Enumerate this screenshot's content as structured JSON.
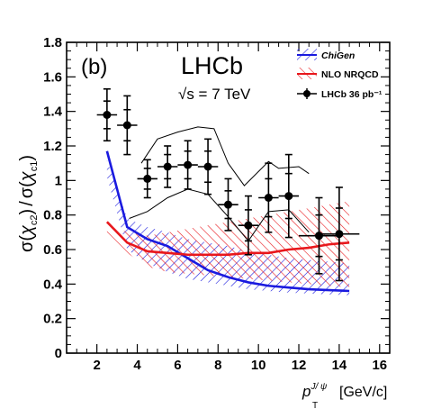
{
  "chart_data": {
    "type": "scatter",
    "panel_label": "(b)",
    "experiment": "LHCb",
    "energy_label": "√s = 7 TeV",
    "ylabel": "σ(χ_c2) / σ(χ_c1)",
    "xlabel": "p_T^{J/ψ} [GeV/c]",
    "xlabel_parts": {
      "p": "p",
      "sup": "J/ ψ",
      "sub": "T",
      "unit": "[GeV/c]"
    },
    "ylabel_parts": {
      "sigma1": "σ(",
      "chi1": "χ",
      "sub1": "c2",
      "close1": ")",
      "slash": "/",
      "sigma2": "σ(",
      "chi2": "χ",
      "sub2": "c1",
      "close2": ")"
    },
    "xlim": [
      0.5,
      16.5
    ],
    "ylim": [
      0,
      1.8
    ],
    "x_ticks": [
      "2",
      "4",
      "6",
      "8",
      "10",
      "12",
      "14",
      "16"
    ],
    "y_ticks": [
      "0",
      "0.2",
      "0.4",
      "0.6",
      "0.8",
      "1",
      "1.2",
      "1.4",
      "1.6",
      "1.8"
    ],
    "legend": [
      {
        "name": "ChiGen",
        "style": "blue-hatch"
      },
      {
        "name": "NLO NRQCD",
        "style": "red-hatch"
      },
      {
        "name": "LHCb 36 pb⁻¹",
        "style": "marker"
      }
    ],
    "series": [
      {
        "name": "LHCb 36 pb⁻¹",
        "points": [
          {
            "x": 2.5,
            "y": 1.38,
            "xerr": 0.5,
            "stat": 0.08,
            "tot": 0.15
          },
          {
            "x": 3.5,
            "y": 1.32,
            "xerr": 0.5,
            "stat": 0.09,
            "tot": 0.17
          },
          {
            "x": 4.5,
            "y": 1.01,
            "xerr": 0.5,
            "stat": 0.06,
            "tot": 0.11
          },
          {
            "x": 5.5,
            "y": 1.08,
            "xerr": 0.5,
            "stat": 0.07,
            "tot": 0.12
          },
          {
            "x": 6.5,
            "y": 1.09,
            "xerr": 0.5,
            "stat": 0.08,
            "tot": 0.14
          },
          {
            "x": 7.5,
            "y": 1.08,
            "xerr": 0.5,
            "stat": 0.09,
            "tot": 0.16
          },
          {
            "x": 8.5,
            "y": 0.86,
            "xerr": 0.5,
            "stat": 0.08,
            "tot": 0.15
          },
          {
            "x": 9.5,
            "y": 0.74,
            "xerr": 0.5,
            "stat": 0.09,
            "tot": 0.17
          },
          {
            "x": 10.5,
            "y": 0.9,
            "xerr": 0.5,
            "stat": 0.11,
            "tot": 0.2
          },
          {
            "x": 11.5,
            "y": 0.91,
            "xerr": 0.5,
            "stat": 0.13,
            "tot": 0.24
          },
          {
            "x": 13.0,
            "y": 0.68,
            "xerr": 1.0,
            "stat": 0.12,
            "tot": 0.22
          },
          {
            "x": 14.0,
            "y": 0.69,
            "xerr": 1.0,
            "stat": 0.15,
            "tot": 0.27
          }
        ]
      },
      {
        "name": "ChiGen",
        "x": [
          2.5,
          3.5,
          4.5,
          5.5,
          6.5,
          7.5,
          8.5,
          9.5,
          10.5,
          11.5,
          12.5,
          13.5,
          14.5
        ],
        "central": [
          1.17,
          0.73,
          0.66,
          0.62,
          0.55,
          0.48,
          0.44,
          0.41,
          0.39,
          0.38,
          0.37,
          0.365,
          0.36
        ],
        "upper": [
          1.12,
          0.78,
          0.73,
          0.7,
          0.66,
          0.64,
          0.62,
          0.59,
          0.57,
          0.55,
          0.54,
          0.53,
          0.52
        ],
        "lower": [
          1.02,
          0.6,
          0.52,
          0.47,
          0.43,
          0.41,
          0.39,
          0.37,
          0.36,
          0.35,
          0.345,
          0.34,
          0.335
        ]
      },
      {
        "name": "NLO NRQCD",
        "x": [
          2.5,
          3.5,
          4.5,
          5.5,
          6.5,
          7.5,
          8.5,
          9.5,
          10.5,
          11.5,
          12.5,
          13.5,
          14.5
        ],
        "central": [
          0.76,
          0.64,
          0.59,
          0.58,
          0.57,
          0.57,
          0.57,
          0.58,
          0.58,
          0.6,
          0.61,
          0.63,
          0.64
        ],
        "upper": [
          0.75,
          0.7,
          0.68,
          0.7,
          0.72,
          0.74,
          0.76,
          0.78,
          0.8,
          0.82,
          0.84,
          0.86,
          0.88
        ],
        "lower": [
          0.7,
          0.58,
          0.5,
          0.47,
          0.46,
          0.45,
          0.44,
          0.43,
          0.42,
          0.41,
          0.4,
          0.39,
          0.38
        ]
      },
      {
        "name": "",
        "style": "thin-black-line",
        "upper_x": [
          4.2,
          5.0,
          6.0,
          7.0,
          7.8,
          8.5,
          9.3,
          10.5,
          11.0,
          12.0,
          12.5
        ],
        "upper_y": [
          1.1,
          1.24,
          1.28,
          1.31,
          1.3,
          1.1,
          0.97,
          1.11,
          1.07,
          1.08,
          1.04
        ],
        "lower_x": [
          3.6,
          4.5,
          5.5,
          6.5,
          7.5,
          8.5,
          9.5,
          10.5,
          11.5,
          12.5
        ],
        "lower_y": [
          0.78,
          0.82,
          0.9,
          0.95,
          0.92,
          0.79,
          0.65,
          0.82,
          0.83,
          0.7
        ]
      }
    ]
  }
}
